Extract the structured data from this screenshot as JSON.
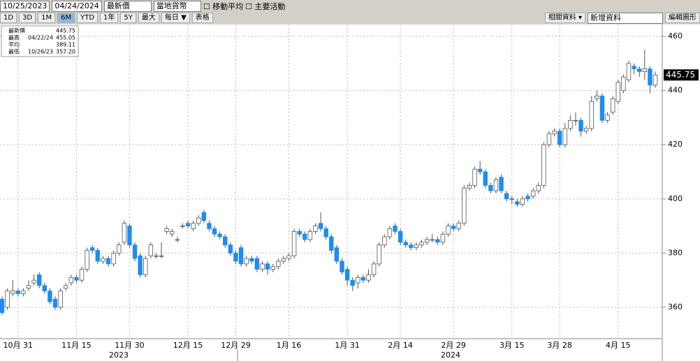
{
  "toolbar": {
    "start_date": "10/25/2023",
    "end_date": "04/24/2024",
    "field": "最新價",
    "currency": "當地貨幣",
    "moving_average": "移動平均",
    "events": "主要活動",
    "ranges": [
      "1D",
      "3D",
      "1M",
      "6M",
      "YTD",
      "1年",
      "5Y",
      "最大"
    ],
    "period": "每日 ▼",
    "table": "表格",
    "related": "相關資料 ▾",
    "add": "新增資料",
    "edit": "編輯圖形"
  },
  "chart_data": {
    "type": "candlestick",
    "legend": [
      {
        "label": "最新價",
        "date": null,
        "value": "445.75"
      },
      {
        "label": "最高",
        "date": "04/22/24",
        "value": "455.05"
      },
      {
        "label": "平均",
        "date": null,
        "value": "389.11"
      },
      {
        "label": "最低",
        "date": "10/26/23",
        "value": "357.20"
      }
    ],
    "year_labels": [
      "2023",
      "2024"
    ],
    "categories": [
      null,
      null,
      null,
      "10月 31",
      null,
      null,
      null,
      null,
      null,
      null,
      null,
      null,
      null,
      null,
      "11月 15",
      null,
      null,
      null,
      null,
      null,
      null,
      null,
      null,
      null,
      "11月 30",
      null,
      null,
      null,
      null,
      null,
      null,
      null,
      null,
      null,
      null,
      "12月 15",
      null,
      null,
      null,
      null,
      null,
      null,
      null,
      null,
      "12月 29",
      null,
      null,
      null,
      null,
      null,
      null,
      null,
      null,
      null,
      "1月 16",
      null,
      null,
      null,
      null,
      null,
      null,
      null,
      null,
      null,
      null,
      "1月 31",
      null,
      null,
      null,
      null,
      null,
      null,
      null,
      null,
      null,
      "2月 14",
      null,
      null,
      null,
      null,
      null,
      null,
      null,
      null,
      null,
      "2月 29",
      null,
      null,
      null,
      null,
      null,
      null,
      null,
      null,
      null,
      null,
      "3月 15",
      null,
      null,
      null,
      null,
      null,
      null,
      null,
      null,
      "3月 28",
      null,
      null,
      null,
      null,
      null,
      null,
      null,
      null,
      null,
      null,
      "4月 15",
      null,
      null,
      null,
      null,
      null,
      null,
      null
    ],
    "open": [
      363,
      360,
      365,
      366,
      365,
      367,
      369,
      372,
      368,
      366,
      363,
      360,
      367,
      369,
      371,
      370,
      374,
      382,
      381,
      377,
      378,
      376,
      380,
      384,
      390,
      383,
      379,
      372,
      379,
      379,
      379,
      388,
      387,
      385,
      390,
      391,
      389,
      391,
      395,
      391,
      389,
      387,
      386,
      383,
      380,
      382,
      376,
      378,
      378,
      374,
      376,
      374,
      375,
      377,
      378,
      379,
      388,
      387,
      385,
      388,
      391,
      389,
      386,
      382,
      377,
      374,
      370,
      369,
      371,
      370,
      372,
      376,
      383,
      386,
      390,
      388,
      384,
      383,
      382,
      383,
      384,
      385,
      385,
      384,
      387,
      390,
      389,
      391,
      404,
      405,
      411,
      410,
      405,
      403,
      408,
      402,
      400,
      399,
      398,
      401,
      401,
      403,
      405,
      420,
      424,
      425,
      420,
      426,
      429,
      429,
      425,
      426,
      437,
      438,
      429,
      432,
      436,
      440,
      444,
      449,
      448,
      447,
      448,
      442
    ],
    "close": [
      358,
      366,
      366,
      365,
      366,
      368,
      370,
      368,
      366,
      362,
      360,
      366,
      368,
      371,
      370,
      374,
      381,
      381,
      377,
      378,
      376,
      380,
      383,
      391,
      383,
      378,
      372,
      378,
      383,
      379,
      379,
      389,
      388,
      385,
      390,
      390,
      391,
      393,
      392,
      389,
      387,
      386,
      383,
      380,
      377,
      376,
      378,
      377,
      374,
      376,
      374,
      375,
      377,
      378,
      379,
      388,
      387,
      385,
      388,
      390,
      389,
      386,
      381,
      377,
      373,
      370,
      368,
      371,
      370,
      372,
      376,
      383,
      386,
      389,
      388,
      384,
      383,
      382,
      383,
      384,
      385,
      385,
      384,
      387,
      390,
      389,
      391,
      404,
      405,
      411,
      410,
      405,
      403,
      407,
      403,
      400,
      400,
      398,
      400,
      400,
      403,
      405,
      420,
      424,
      425,
      420,
      426,
      429,
      429,
      425,
      426,
      436,
      438,
      429,
      431,
      437,
      443,
      445,
      450,
      448,
      447,
      448,
      442,
      445.75
    ],
    "high": [
      364,
      367,
      370,
      367,
      367,
      370,
      372,
      373,
      369,
      367,
      364,
      367,
      369,
      372,
      372,
      375,
      382,
      383,
      382,
      379,
      379,
      381,
      384,
      392,
      391,
      384,
      380,
      379,
      384,
      380,
      384,
      390,
      389,
      386,
      391,
      392,
      392,
      394,
      396,
      392,
      390,
      388,
      387,
      384,
      381,
      383,
      379,
      379,
      379,
      377,
      377,
      376,
      378,
      379,
      380,
      389,
      389,
      388,
      389,
      391,
      395,
      390,
      387,
      383,
      378,
      375,
      371,
      372,
      372,
      374,
      377,
      384,
      387,
      390,
      391,
      389,
      385,
      384,
      384,
      385,
      386,
      387,
      386,
      388,
      391,
      391,
      392,
      405,
      406,
      412,
      414,
      411,
      406,
      408,
      409,
      403,
      401,
      400,
      401,
      402,
      404,
      406,
      421,
      425,
      426,
      426,
      428,
      431,
      432,
      430,
      427,
      438,
      440,
      439,
      432,
      438,
      444,
      446,
      451,
      450,
      449,
      455.05,
      449,
      447
    ],
    "low": [
      357.2,
      359,
      364,
      364,
      364,
      366,
      368,
      367,
      365,
      361,
      359,
      359,
      366,
      368,
      369,
      369,
      373,
      380,
      376,
      376,
      375,
      375,
      379,
      383,
      382,
      377,
      371,
      371,
      378,
      378,
      378,
      387,
      386,
      384,
      389,
      389,
      388,
      390,
      391,
      388,
      386,
      385,
      382,
      379,
      376,
      375,
      375,
      376,
      373,
      373,
      372,
      373,
      374,
      376,
      377,
      378,
      386,
      384,
      384,
      387,
      388,
      385,
      380,
      376,
      372,
      368,
      366,
      367,
      369,
      369,
      371,
      375,
      382,
      385,
      387,
      383,
      382,
      381,
      381,
      382,
      383,
      384,
      383,
      383,
      386,
      388,
      388,
      390,
      403,
      404,
      409,
      404,
      402,
      402,
      402,
      399,
      398,
      397,
      397,
      399,
      400,
      402,
      404,
      419,
      423,
      419,
      419,
      425,
      427,
      423,
      424,
      425,
      436,
      428,
      428,
      431,
      435,
      439,
      443,
      446,
      445,
      444,
      439,
      441
    ],
    "up_color": "#ffffff",
    "down_color": "#1e8cf0",
    "ylim": [
      348.4,
      464.4
    ],
    "yticks": [
      360,
      380,
      400,
      420,
      440,
      460
    ],
    "grid": true
  }
}
